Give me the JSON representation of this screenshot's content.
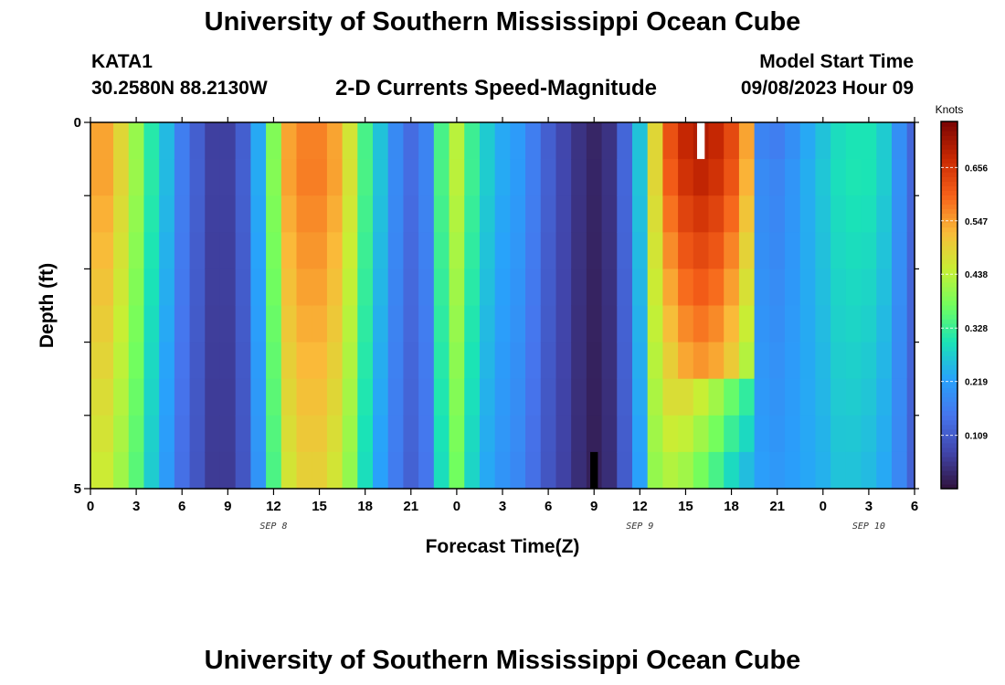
{
  "header": {
    "title": "University of Southern Mississippi Ocean Cube",
    "station": "KATA1",
    "coords": "30.2580N  88.2130W",
    "subtitle": "2-D Currents Speed-Magnitude",
    "model_start_label": "Model Start Time",
    "model_start_value": "09/08/2023 Hour 09"
  },
  "footer": {
    "title": "University of Southern Mississippi Ocean Cube"
  },
  "chart_data": {
    "type": "heatmap",
    "title": "2-D Currents Speed-Magnitude",
    "xlabel": "Forecast Time(Z)",
    "ylabel": "Depth (ft)",
    "x_range_hours": [
      0,
      54
    ],
    "x_tick_hours": [
      0,
      3,
      6,
      9,
      12,
      15,
      18,
      21,
      24,
      27,
      30,
      33,
      36,
      39,
      42,
      45,
      48,
      51,
      54
    ],
    "x_tick_labels": [
      "0",
      "3",
      "6",
      "9",
      "12",
      "15",
      "18",
      "21",
      "0",
      "3",
      "6",
      "9",
      "12",
      "15",
      "18",
      "21",
      "0",
      "3",
      "6"
    ],
    "date_labels": [
      {
        "hour": 12,
        "text": "SEP 8"
      },
      {
        "hour": 36,
        "text": "SEP 9"
      },
      {
        "hour": 51,
        "text": "SEP 10"
      }
    ],
    "y_range": [
      0,
      5
    ],
    "y_tick_labels": [
      "0",
      "5"
    ],
    "depth_levels": [
      0,
      1,
      2,
      3,
      4,
      5
    ],
    "colorbar": {
      "label": "Knots",
      "min": 0.0,
      "max": 0.75,
      "ticks": [
        0.109,
        0.219,
        0.328,
        0.438,
        0.547,
        0.656
      ],
      "tick_labels": [
        "0.109",
        "0.219",
        "0.328",
        "0.438",
        "0.547",
        "0.656"
      ]
    },
    "speed_profile_knots": {
      "hours": [
        0,
        1,
        2,
        3,
        4,
        5,
        6,
        7,
        8,
        9,
        10,
        11,
        12,
        13,
        14,
        15,
        16,
        17,
        18,
        19,
        20,
        21,
        22,
        23,
        24,
        25,
        26,
        27,
        28,
        29,
        30,
        31,
        32,
        33,
        34,
        35,
        36,
        37,
        38,
        39,
        40,
        41,
        42,
        43,
        44,
        45,
        46,
        47,
        48,
        49,
        50,
        51,
        52,
        53,
        54
      ],
      "surface": [
        0.56,
        0.56,
        0.5,
        0.42,
        0.32,
        0.26,
        0.17,
        0.12,
        0.07,
        0.07,
        0.12,
        0.24,
        0.4,
        0.56,
        0.59,
        0.59,
        0.56,
        0.48,
        0.35,
        0.27,
        0.19,
        0.14,
        0.18,
        0.35,
        0.45,
        0.34,
        0.28,
        0.24,
        0.22,
        0.17,
        0.12,
        0.08,
        0.05,
        0.03,
        0.05,
        0.13,
        0.27,
        0.5,
        0.64,
        0.7,
        0.72,
        0.7,
        0.65,
        0.56,
        0.18,
        0.17,
        0.2,
        0.24,
        0.27,
        0.3,
        0.31,
        0.31,
        0.28,
        0.2,
        0.13
      ],
      "bottom": [
        0.45,
        0.45,
        0.41,
        0.35,
        0.27,
        0.21,
        0.14,
        0.1,
        0.06,
        0.06,
        0.1,
        0.2,
        0.34,
        0.46,
        0.49,
        0.49,
        0.46,
        0.4,
        0.29,
        0.22,
        0.16,
        0.12,
        0.15,
        0.29,
        0.37,
        0.28,
        0.23,
        0.2,
        0.18,
        0.14,
        0.1,
        0.07,
        0.04,
        0.02,
        0.04,
        0.11,
        0.22,
        0.4,
        0.42,
        0.4,
        0.36,
        0.32,
        0.27,
        0.24,
        0.22,
        0.21,
        0.22,
        0.23,
        0.24,
        0.26,
        0.26,
        0.25,
        0.23,
        0.18,
        0.12
      ]
    },
    "high_cutoff_hour": 43.5,
    "high_cutoff_depth": 3.5,
    "missing_cells": [
      {
        "hour": 40,
        "depth_from": 0,
        "depth_to": 0.5,
        "color": "#ffffff"
      },
      {
        "hour": 33,
        "depth_from": 4.5,
        "depth_to": 5,
        "color": "#000000"
      }
    ]
  }
}
